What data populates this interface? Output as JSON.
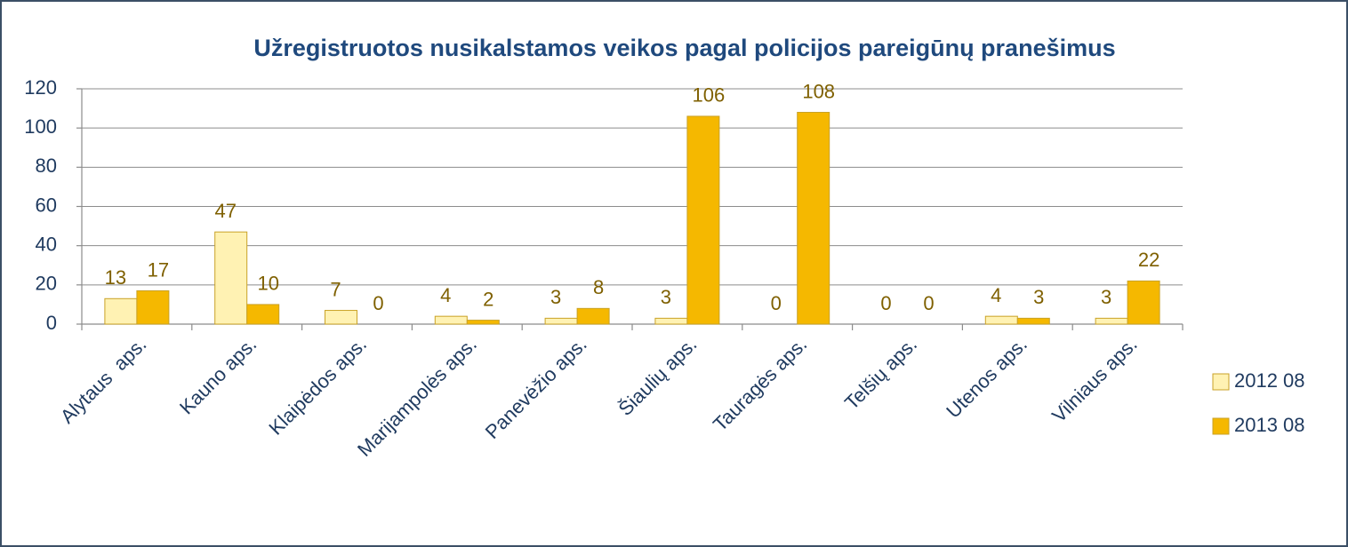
{
  "chart_data": {
    "type": "bar",
    "title": "Užregistruotos nusikalstamos veikos pagal policijos pareigūnų pranešimus",
    "categories": [
      "Alytaus  aps.",
      "Kauno aps.",
      "Klaipėdos aps.",
      "Marijampolės aps.",
      "Panevėžio aps.",
      "Šiaulių aps.",
      "Tauragės aps.",
      "Telšių aps.",
      "Utenos aps.",
      "Vilniaus aps."
    ],
    "series": [
      {
        "name": "2012 08",
        "color": "#fff2b3",
        "values": [
          13,
          47,
          7,
          4,
          3,
          3,
          0,
          0,
          4,
          3
        ]
      },
      {
        "name": "2013 08",
        "color": "#f5b800",
        "values": [
          17,
          10,
          0,
          2,
          8,
          106,
          108,
          0,
          3,
          22
        ]
      }
    ],
    "ylim": [
      0,
      120
    ],
    "yticks": [
      0,
      20,
      40,
      60,
      80,
      100,
      120
    ],
    "grid": true,
    "legend": "right"
  }
}
